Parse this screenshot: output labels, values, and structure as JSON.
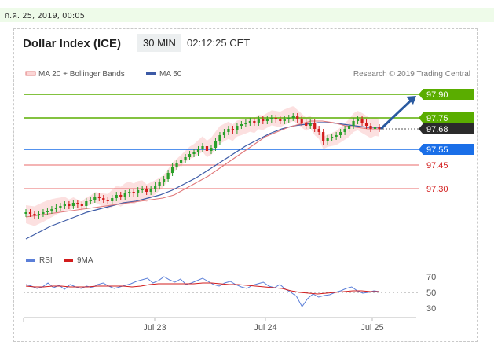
{
  "header": {
    "date_bar": "ก.ค. 25, 2019, 00:05",
    "title": "Dollar Index (ICE)",
    "timeframe": "30 MIN",
    "time": "02:12:25 CET"
  },
  "legend": {
    "ma20_label": "MA 20 + Bollinger Bands",
    "ma50_label": "MA 50",
    "credit": "Research © 2019 Trading Central"
  },
  "rsi_legend": {
    "rsi_label": "RSI",
    "ma9_label": "9MA"
  },
  "colors": {
    "resistance": "#5aad00",
    "support": "#1a6fe8",
    "level_line": "#e86a6a",
    "ma20": "#e0787a",
    "ma50": "#3c5aa6",
    "band_fill": "#fbd6d6",
    "candle_up": "#2aa02a",
    "candle_down": "#d21c1c",
    "arrow": "#2a5aa0",
    "current_price_bg": "#2b2b2b",
    "rsi": "#5b7fd8",
    "rsi_ma": "#d21c1c"
  },
  "chart_data": [
    {
      "type": "candlestick",
      "title": "Dollar Index (ICE) 30 MIN",
      "x_ticks": [
        "Jul 23",
        "Jul 24",
        "Jul 25"
      ],
      "ylim": [
        96.9,
        97.95
      ],
      "price_levels": [
        {
          "value": 97.9,
          "label": "97.90",
          "kind": "target"
        },
        {
          "value": 97.75,
          "label": "97.75",
          "kind": "resistance"
        },
        {
          "value": 97.68,
          "label": "97.68",
          "kind": "current"
        },
        {
          "value": 97.55,
          "label": "97.55",
          "kind": "support"
        },
        {
          "value": 97.45,
          "label": "97.45",
          "kind": "level"
        },
        {
          "value": 97.3,
          "label": "97.30",
          "kind": "level"
        }
      ],
      "close_path": [
        97.15,
        97.14,
        97.13,
        97.14,
        97.15,
        97.16,
        97.17,
        97.18,
        97.19,
        97.2,
        97.19,
        97.21,
        97.2,
        97.19,
        97.22,
        97.23,
        97.25,
        97.24,
        97.23,
        97.22,
        97.24,
        97.26,
        97.25,
        97.27,
        97.28,
        97.27,
        97.29,
        97.3,
        97.28,
        97.3,
        97.32,
        97.34,
        97.36,
        97.4,
        97.44,
        97.46,
        97.48,
        97.5,
        97.52,
        97.53,
        97.55,
        97.57,
        97.54,
        97.56,
        97.6,
        97.64,
        97.66,
        97.68,
        97.67,
        97.7,
        97.71,
        97.72,
        97.73,
        97.72,
        97.74,
        97.73,
        97.74,
        97.75,
        97.74,
        97.73,
        97.74,
        97.75,
        97.76,
        97.74,
        97.72,
        97.7,
        97.72,
        97.68,
        97.66,
        97.6,
        97.62,
        97.63,
        97.64,
        97.66,
        97.68,
        97.7,
        97.73,
        97.74,
        97.72,
        97.7,
        97.68,
        97.69,
        97.68
      ],
      "ma20_path": [
        97.12,
        97.13,
        97.14,
        97.15,
        97.16,
        97.17,
        97.18,
        97.19,
        97.2,
        97.21,
        97.22,
        97.23,
        97.24,
        97.26,
        97.3,
        97.34,
        97.38,
        97.43,
        97.48,
        97.53,
        97.58,
        97.63,
        97.66,
        97.69,
        97.71,
        97.73,
        97.73,
        97.72,
        97.7,
        97.69,
        97.68,
        97.68
      ],
      "ma50_path": [
        96.98,
        97.02,
        97.06,
        97.09,
        97.12,
        97.15,
        97.17,
        97.19,
        97.21,
        97.22,
        97.24,
        97.26,
        97.29,
        97.33,
        97.37,
        97.42,
        97.47,
        97.52,
        97.57,
        97.61,
        97.65,
        97.68,
        97.7,
        97.71,
        97.72,
        97.72,
        97.71,
        97.7,
        97.69,
        97.69
      ],
      "forecast_arrow": {
        "from": 97.68,
        "to": 97.9
      }
    },
    {
      "type": "line",
      "title": "RSI",
      "yticks": [
        70,
        50,
        30
      ],
      "ylim": [
        25,
        75
      ],
      "rsi": [
        60,
        58,
        55,
        57,
        62,
        56,
        59,
        54,
        60,
        57,
        55,
        58,
        56,
        60,
        62,
        58,
        55,
        57,
        59,
        61,
        64,
        66,
        68,
        62,
        65,
        70,
        66,
        63,
        67,
        60,
        62,
        65,
        68,
        64,
        60,
        58,
        62,
        64,
        60,
        57,
        55,
        59,
        61,
        63,
        58,
        56,
        60,
        54,
        50,
        45,
        32,
        42,
        48,
        44,
        46,
        47,
        50,
        52,
        55,
        57,
        52,
        49,
        50,
        52,
        51
      ],
      "rsi_ma": [
        58,
        57,
        57,
        58,
        58,
        57,
        57,
        57,
        58,
        58,
        58,
        58,
        57,
        58,
        60,
        61,
        61,
        61,
        61,
        61,
        62,
        62,
        61,
        60,
        60,
        59,
        58,
        57,
        56,
        55,
        52,
        50,
        49,
        48,
        49,
        50,
        51,
        52,
        52,
        51,
        51
      ]
    }
  ]
}
